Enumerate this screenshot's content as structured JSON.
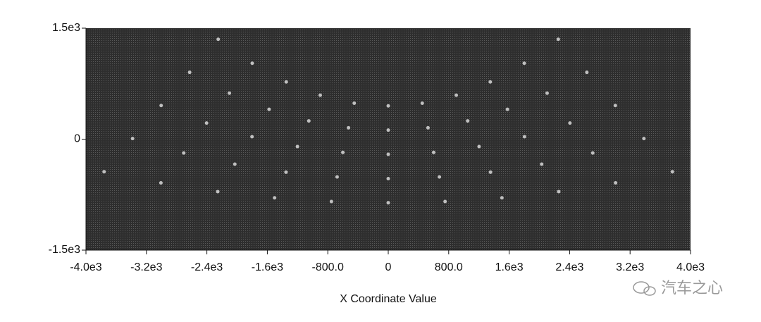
{
  "chart_data": {
    "type": "scatter",
    "x_label": "X Coordinate Value",
    "watermark": "汽车之心",
    "xlim": [
      -4000,
      4000
    ],
    "ylim": [
      -1500,
      1500
    ],
    "xticks": [
      {
        "value": -4000,
        "label": "-4.0e3"
      },
      {
        "value": -3200,
        "label": "-3.2e3"
      },
      {
        "value": -2400,
        "label": "-2.4e3"
      },
      {
        "value": -1600,
        "label": "-1.6e3"
      },
      {
        "value": -800,
        "label": "-800.0"
      },
      0,
      {
        "value": 800,
        "label": "800.0"
      },
      {
        "value": 1600,
        "label": "1.6e3"
      },
      {
        "value": 2400,
        "label": "2.4e3"
      },
      {
        "value": 3200,
        "label": "3.2e3"
      },
      {
        "value": 4000,
        "label": "4.0e3"
      }
    ],
    "yticks": [
      {
        "value": -1500,
        "label": "-1.5e3"
      },
      0,
      {
        "value": 1500,
        "label": "1.5e3"
      }
    ],
    "color": "#d8d8d8",
    "background": "#333333",
    "x": [
      -2250,
      -2628,
      -3005,
      -3383,
      -3760,
      -1800,
      -2102,
      -2404,
      -2706,
      -3008,
      -1350,
      -1577,
      -1803,
      -2030,
      -2256,
      -900,
      -1051,
      -1202,
      -1353,
      -1504,
      -450,
      -526,
      -601,
      -677,
      -752,
      0,
      0,
      0,
      0,
      0,
      450,
      526,
      601,
      677,
      752,
      900,
      1051,
      1202,
      1353,
      1504,
      1350,
      1577,
      1803,
      2030,
      2256,
      1800,
      2102,
      2404,
      2706,
      3008,
      2250,
      2628,
      3005,
      3383,
      3760
    ],
    "y": [
      1350,
      903,
      455,
      8,
      -440,
      1026,
      622,
      218,
      -187,
      -591,
      774,
      403,
      33,
      -338,
      -709,
      594,
      247,
      -100,
      -446,
      -793,
      486,
      154,
      -179,
      -511,
      -843,
      450,
      123,
      -205,
      -533,
      -860,
      486,
      154,
      -179,
      -511,
      -843,
      594,
      247,
      -100,
      -446,
      -793,
      774,
      403,
      33,
      -338,
      -709,
      1026,
      622,
      218,
      -187,
      -591,
      1350,
      903,
      455,
      8,
      -440
    ]
  }
}
